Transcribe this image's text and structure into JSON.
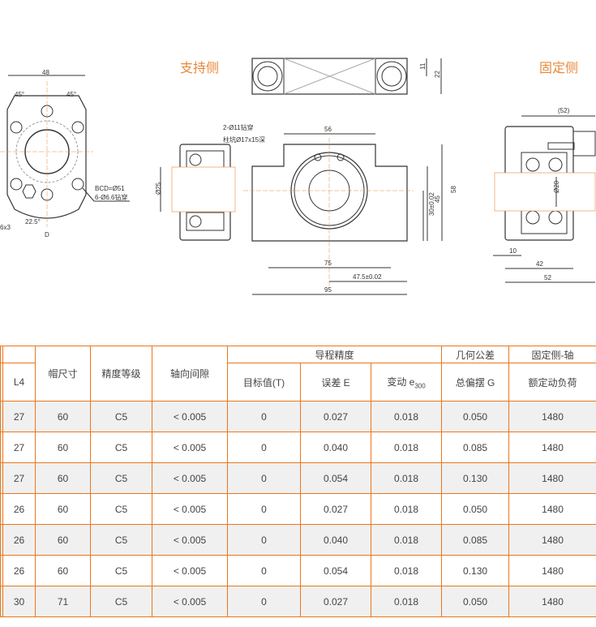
{
  "titles": {
    "support_side": "支持侧",
    "fixed_side": "固定侧"
  },
  "drawing": {
    "flange": {
      "width": "48",
      "angle_left": "45°",
      "angle_right": "45°",
      "bcd": "BCD=Ø51",
      "holes": "6-Ø6.6钻穿",
      "angle_bottom": "22.5°",
      "section": "D",
      "thread": "6x3"
    },
    "support_bearing": {
      "shaft_dia": "Ø25"
    },
    "block_top": {
      "dim_a": "11",
      "dim_b": "22"
    },
    "block_front": {
      "hole_note_1": "2-Ø11钻穿",
      "hole_note_2": "柱坑Ø17x15深",
      "top_width": "56",
      "height": "58",
      "shoulder": "45",
      "center_height": "30±0.02",
      "bolt_span": "75",
      "half_width": "47.5±0.02",
      "total_width": "95"
    },
    "fixed_side": {
      "overall": "(52)",
      "shaft_dia": "Ø20",
      "dim_10": "10",
      "dim_42": "42",
      "dim_52": "52"
    }
  },
  "table": {
    "group_headers": {
      "lead_accuracy": "导程精度",
      "geometric_tolerance": "几何公差",
      "fixed_side": "固定侧-轴"
    },
    "headers": {
      "l4": "L4",
      "nut_size": "帽尺寸",
      "grade": "精度等级",
      "axial_play": "轴向间隙",
      "target": "目标值(T)",
      "error": "误差 E",
      "variation": "变动 e",
      "variation_sub": "300",
      "runout": "总偏摆 G",
      "dynamic_load": "额定动负荷"
    },
    "rows": [
      [
        "27",
        "60",
        "C5",
        "< 0.005",
        "0",
        "0.027",
        "0.018",
        "0.050",
        "1480"
      ],
      [
        "27",
        "60",
        "C5",
        "< 0.005",
        "0",
        "0.040",
        "0.018",
        "0.085",
        "1480"
      ],
      [
        "27",
        "60",
        "C5",
        "< 0.005",
        "0",
        "0.054",
        "0.018",
        "0.130",
        "1480"
      ],
      [
        "26",
        "60",
        "C5",
        "< 0.005",
        "0",
        "0.027",
        "0.018",
        "0.050",
        "1480"
      ],
      [
        "26",
        "60",
        "C5",
        "< 0.005",
        "0",
        "0.040",
        "0.018",
        "0.085",
        "1480"
      ],
      [
        "26",
        "60",
        "C5",
        "< 0.005",
        "0",
        "0.054",
        "0.018",
        "0.130",
        "1480"
      ],
      [
        "30",
        "71",
        "C5",
        "< 0.005",
        "0",
        "0.027",
        "0.018",
        "0.050",
        "1480"
      ]
    ]
  },
  "colors": {
    "accent": "#e8771f",
    "title": "#e8883a",
    "row_alt": "#f0f0f0"
  }
}
